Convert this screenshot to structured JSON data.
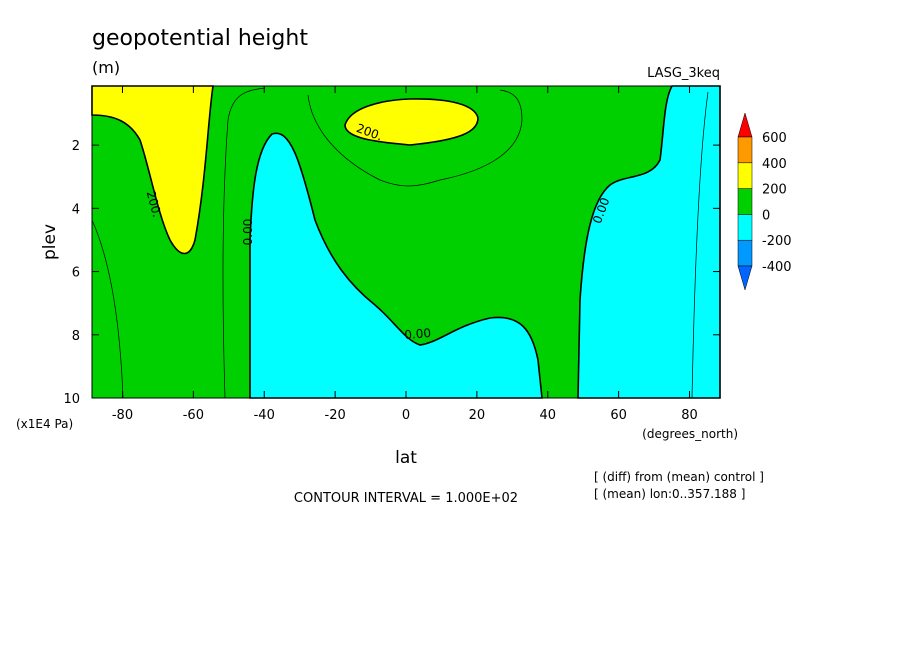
{
  "chart_data": {
    "type": "contour",
    "title": "geopotential height",
    "subtitle": "(m)",
    "dataset": "LASG_3keq",
    "x_label": "lat",
    "x_units": "(degrees_north)",
    "y_label": "plev",
    "y_units": "(x1E4 Pa)",
    "xlim": [
      -88.6,
      88.6
    ],
    "xticks": [
      -80,
      -60,
      -40,
      -20,
      0,
      20,
      40,
      60,
      80
    ],
    "ylim": [
      10,
      0.13
    ],
    "yticks": [
      2,
      4,
      6,
      8,
      10
    ],
    "colorbar": {
      "levels": [
        -400,
        -200,
        0,
        200,
        400,
        600
      ],
      "colors": [
        "#0066ff",
        "#0099ff",
        "#00ffff",
        "#00d000",
        "#ffff00",
        "#ff9900",
        "#ff0000"
      ]
    },
    "contour_labels": [
      "200.",
      "200.",
      "0.00",
      "0.00",
      "0.00"
    ],
    "footnote": "CONTOUR INTERVAL = 1.000E+02",
    "notes": [
      "[ (diff) from (mean) control ]",
      "[ (mean) lon:0..357.188 ]"
    ]
  }
}
